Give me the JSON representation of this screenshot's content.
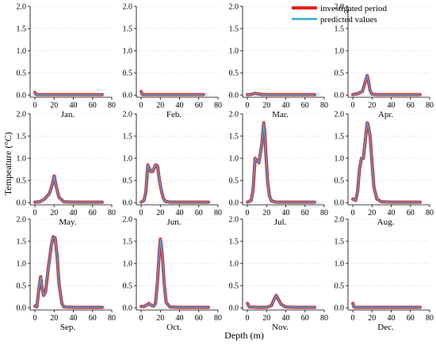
{
  "figure": {
    "xlabel": "Depth (m)",
    "ylabel": "Tempeature (°C)"
  },
  "colors": {
    "investigated": "#e8211f",
    "predicted": "#3ba3d4",
    "axis": "#000000",
    "grid": "#d8d8d8"
  },
  "legend": {
    "items": [
      {
        "label": "investigated period",
        "color": "#e8211f"
      },
      {
        "label": "predicted values",
        "color": "#3ba3d4"
      }
    ]
  },
  "chart_data": {
    "type": "line",
    "xlabel": "Depth (m)",
    "ylabel": "Tempeature (°C)",
    "xlim": [
      -5,
      80
    ],
    "ylim": [
      -0.05,
      2.0
    ],
    "xticks": [
      0,
      20,
      40,
      60,
      80
    ],
    "yticks": [
      0.0,
      0.5,
      1.0,
      1.5,
      2.0
    ],
    "ytick_labels": [
      "0.0",
      "0.5",
      "1.0",
      "1.5",
      "2.0"
    ],
    "grid": true,
    "legend_position": "top-right",
    "series_names": [
      "investigated period",
      "predicted values"
    ],
    "panels": [
      {
        "label": "Jan.",
        "x": [
          0,
          1,
          2,
          5,
          10,
          20,
          30,
          40,
          50,
          60,
          70
        ],
        "y": [
          0.06,
          0.02,
          0.01,
          0.01,
          0.01,
          0.01,
          0.01,
          0.01,
          0.01,
          0.01,
          0.01
        ]
      },
      {
        "label": "Feb.",
        "x": [
          0,
          1,
          2,
          5,
          10,
          20,
          30,
          40,
          50,
          60,
          65
        ],
        "y": [
          0.08,
          0.02,
          0.01,
          0.01,
          0.01,
          0.01,
          0.01,
          0.01,
          0.01,
          0.01,
          0.01
        ]
      },
      {
        "label": "Mar.",
        "x": [
          0,
          2,
          5,
          8,
          10,
          15,
          20,
          30,
          40,
          50,
          60,
          70
        ],
        "y": [
          0.01,
          0.01,
          0.02,
          0.04,
          0.03,
          0.01,
          0.01,
          0.01,
          0.01,
          0.01,
          0.01,
          0.01
        ]
      },
      {
        "label": "Apr.",
        "x": [
          0,
          5,
          10,
          13,
          15,
          16,
          18,
          20,
          25,
          30,
          40,
          50,
          60,
          70
        ],
        "y": [
          0.01,
          0.03,
          0.08,
          0.3,
          0.44,
          0.35,
          0.1,
          0.02,
          0.01,
          0.01,
          0.01,
          0.01,
          0.01,
          0.01
        ]
      },
      {
        "label": "May.",
        "x": [
          0,
          5,
          10,
          15,
          18,
          20,
          22,
          25,
          30,
          40,
          50,
          60,
          70
        ],
        "y": [
          0.01,
          0.02,
          0.08,
          0.2,
          0.4,
          0.6,
          0.38,
          0.12,
          0.02,
          0.01,
          0.01,
          0.01,
          0.01
        ]
      },
      {
        "label": "Jun.",
        "x": [
          0,
          3,
          5,
          7,
          10,
          12,
          15,
          17,
          19,
          21,
          23,
          25,
          30,
          40,
          50,
          60,
          70
        ],
        "y": [
          0.01,
          0.05,
          0.25,
          0.85,
          0.7,
          0.7,
          0.85,
          0.83,
          0.5,
          0.28,
          0.1,
          0.03,
          0.01,
          0.01,
          0.01,
          0.01,
          0.01
        ]
      },
      {
        "label": "Jul.",
        "x": [
          0,
          4,
          6,
          8,
          10,
          12,
          15,
          17,
          18,
          19,
          21,
          23,
          25,
          30,
          40,
          50,
          60,
          70
        ],
        "y": [
          0.01,
          0.05,
          0.3,
          1.0,
          0.95,
          0.9,
          1.3,
          1.8,
          1.6,
          1.2,
          0.5,
          0.15,
          0.04,
          0.01,
          0.01,
          0.01,
          0.01,
          0.01
        ]
      },
      {
        "label": "Aug.",
        "x": [
          0,
          3,
          5,
          7,
          9,
          11,
          13,
          15,
          16,
          18,
          20,
          22,
          25,
          30,
          40,
          50,
          60,
          70
        ],
        "y": [
          0.08,
          0.05,
          0.25,
          0.75,
          1.0,
          1.0,
          1.4,
          1.8,
          1.75,
          1.5,
          0.9,
          0.35,
          0.08,
          0.02,
          0.01,
          0.01,
          0.01,
          0.01
        ]
      },
      {
        "label": "Sep.",
        "x": [
          0,
          2,
          4,
          6,
          7,
          9,
          11,
          14,
          17,
          19,
          21,
          23,
          25,
          28,
          30,
          40,
          50,
          60,
          70
        ],
        "y": [
          0.04,
          0.02,
          0.4,
          0.7,
          0.5,
          0.28,
          0.35,
          0.9,
          1.4,
          1.6,
          1.58,
          1.2,
          0.55,
          0.1,
          0.02,
          0.01,
          0.01,
          0.01,
          0.01
        ]
      },
      {
        "label": "Oct.",
        "x": [
          0,
          3,
          5,
          8,
          10,
          13,
          15,
          17,
          19,
          20,
          22,
          24,
          26,
          30,
          40,
          50,
          60,
          70
        ],
        "y": [
          0.03,
          0.03,
          0.05,
          0.1,
          0.06,
          0.04,
          0.1,
          0.6,
          1.3,
          1.55,
          1.2,
          0.55,
          0.12,
          0.02,
          0.01,
          0.01,
          0.01,
          0.01
        ]
      },
      {
        "label": "Nov.",
        "x": [
          0,
          2,
          10,
          20,
          25,
          28,
          30,
          32,
          35,
          40,
          50,
          60,
          70
        ],
        "y": [
          0.1,
          0.02,
          0.01,
          0.01,
          0.05,
          0.2,
          0.28,
          0.2,
          0.08,
          0.02,
          0.01,
          0.01,
          0.01
        ]
      },
      {
        "label": "Dec.",
        "x": [
          0,
          1,
          2,
          5,
          10,
          20,
          30,
          40,
          50,
          60,
          70
        ],
        "y": [
          0.1,
          0.03,
          0.01,
          0.01,
          0.01,
          0.01,
          0.01,
          0.01,
          0.01,
          0.01,
          0.01
        ]
      }
    ]
  }
}
